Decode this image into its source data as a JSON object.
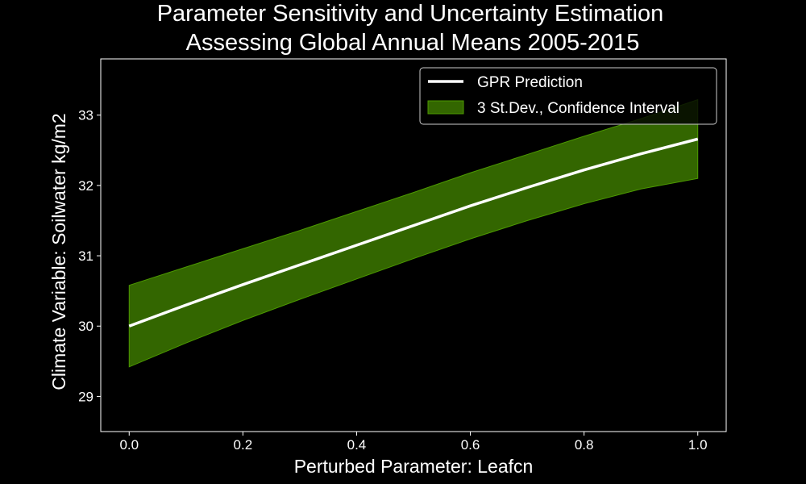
{
  "chart_data": {
    "type": "line",
    "title_lines": [
      "Parameter Sensitivity and Uncertainty Estimation",
      "Assessing Global Annual Means 2005-2015"
    ],
    "xlabel": "Perturbed Parameter: Leafcn",
    "ylabel": "Climate Variable: Soilwater kg/m2",
    "xlim": [
      -0.05,
      1.05
    ],
    "ylim": [
      28.5,
      33.8
    ],
    "xticks": [
      0.0,
      0.2,
      0.4,
      0.6,
      0.8,
      1.0
    ],
    "xtick_labels": [
      "0.0",
      "0.2",
      "0.4",
      "0.6",
      "0.8",
      "1.0"
    ],
    "yticks": [
      29,
      30,
      31,
      32,
      33
    ],
    "ytick_labels": [
      "29",
      "30",
      "31",
      "32",
      "33"
    ],
    "grid": false,
    "legend_position": "upper-right",
    "series": [
      {
        "name": "GPR Prediction",
        "kind": "line",
        "color": "#ffffff",
        "x": [
          0.0,
          0.1,
          0.2,
          0.3,
          0.4,
          0.5,
          0.6,
          0.7,
          0.8,
          0.9,
          1.0
        ],
        "y": [
          30.0,
          30.3,
          30.59,
          30.87,
          31.15,
          31.43,
          31.71,
          31.97,
          32.22,
          32.45,
          32.66
        ]
      },
      {
        "name": "3 St.Dev., Confidence Interval",
        "kind": "band",
        "color": "#336600",
        "edge_color": "#4c9900",
        "x": [
          0.0,
          0.1,
          0.2,
          0.3,
          0.4,
          0.5,
          0.6,
          0.7,
          0.8,
          0.9,
          1.0
        ],
        "lower": [
          29.42,
          29.76,
          30.08,
          30.38,
          30.67,
          30.96,
          31.24,
          31.5,
          31.74,
          31.95,
          32.1
        ],
        "upper": [
          30.58,
          30.84,
          31.1,
          31.36,
          31.63,
          31.9,
          32.18,
          32.44,
          32.7,
          32.95,
          33.22
        ]
      }
    ]
  }
}
